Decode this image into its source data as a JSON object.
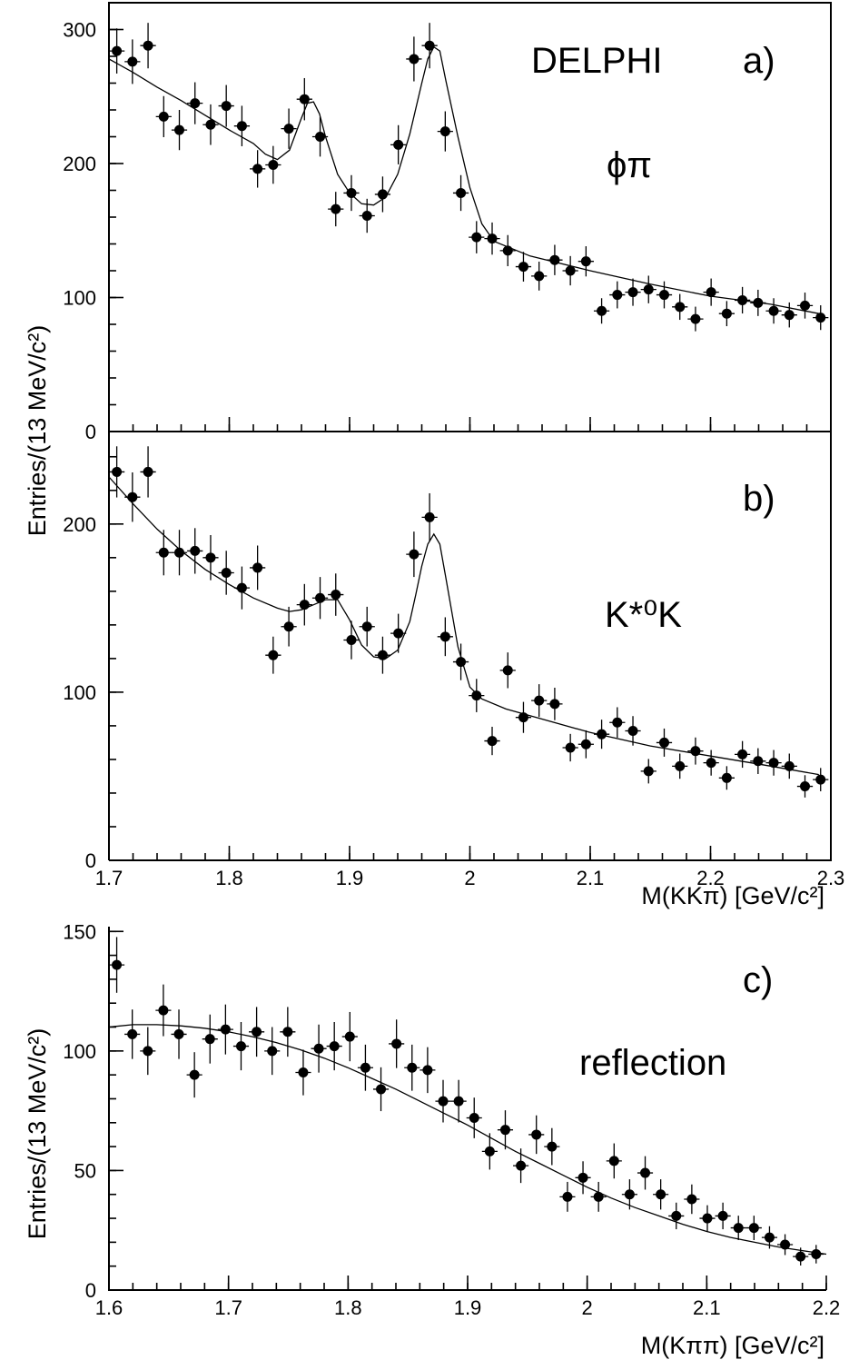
{
  "chart_data": [
    {
      "id": "a",
      "type": "scatter",
      "panel_label": "a)",
      "experiment": "DELPHI",
      "channel": "ϕπ",
      "xlim": [
        1.7,
        2.3
      ],
      "ylim": [
        0,
        320
      ],
      "yticks": [
        0,
        100,
        200,
        300
      ],
      "xticks": [],
      "ylabel": "",
      "x": [
        1.7065,
        1.7195,
        1.7325,
        1.7455,
        1.7585,
        1.7715,
        1.7845,
        1.7975,
        1.8105,
        1.8235,
        1.8365,
        1.8495,
        1.8625,
        1.8755,
        1.8885,
        1.9015,
        1.9145,
        1.9275,
        1.9405,
        1.9535,
        1.9665,
        1.9795,
        1.9925,
        2.0055,
        2.0185,
        2.0315,
        2.0445,
        2.0575,
        2.0705,
        2.0835,
        2.0965,
        2.1095,
        2.1225,
        2.1355,
        2.1485,
        2.1615,
        2.1745,
        2.1875,
        2.2005,
        2.2135,
        2.2265,
        2.2395,
        2.2525,
        2.2655,
        2.2785,
        2.2915
      ],
      "y": [
        284,
        276,
        288,
        235,
        225,
        245,
        229,
        243,
        228,
        196,
        199,
        226,
        248,
        220,
        166,
        178,
        161,
        177,
        214,
        278,
        288,
        224,
        178,
        145,
        144,
        135,
        123,
        116,
        128,
        120,
        127,
        90,
        102,
        104,
        106,
        102,
        93,
        84,
        104,
        88,
        98,
        96,
        90,
        87,
        94,
        85
      ],
      "fit": {
        "x": [
          1.7,
          1.72,
          1.74,
          1.76,
          1.78,
          1.8,
          1.82,
          1.83,
          1.84,
          1.85,
          1.86,
          1.865,
          1.87,
          1.875,
          1.88,
          1.89,
          1.9,
          1.91,
          1.92,
          1.93,
          1.94,
          1.95,
          1.96,
          1.965,
          1.97,
          1.975,
          1.98,
          1.99,
          2.0,
          2.01,
          2.02,
          2.05,
          2.1,
          2.15,
          2.2,
          2.25,
          2.29
        ],
        "y": [
          278,
          268,
          257,
          247,
          236,
          225,
          215,
          207,
          203,
          210,
          234,
          245,
          246,
          237,
          220,
          192,
          178,
          170,
          169,
          175,
          192,
          222,
          260,
          278,
          287,
          284,
          262,
          220,
          182,
          155,
          142,
          131,
          120,
          110,
          101,
          95,
          88
        ]
      }
    },
    {
      "id": "b",
      "type": "scatter",
      "panel_label": "b)",
      "channel": "K*⁰K",
      "xlim": [
        1.7,
        2.3
      ],
      "ylim": [
        0,
        255
      ],
      "yticks": [
        0,
        100,
        200
      ],
      "xticks": [
        1.7,
        1.8,
        1.9,
        2,
        2.1,
        2.2,
        2.3
      ],
      "xtick_labels": [
        "1.7",
        "1.8",
        "1.9",
        "2",
        "2.1",
        "2.2",
        "2.3"
      ],
      "xlabel": "M(KKπ) [GeV/c²]",
      "x": [
        1.7065,
        1.7195,
        1.7325,
        1.7455,
        1.7585,
        1.7715,
        1.7845,
        1.7975,
        1.8105,
        1.8235,
        1.8365,
        1.8495,
        1.8625,
        1.8755,
        1.8885,
        1.9015,
        1.9145,
        1.9275,
        1.9405,
        1.9535,
        1.9665,
        1.9795,
        1.9925,
        2.0055,
        2.0185,
        2.0315,
        2.0445,
        2.0575,
        2.0705,
        2.0835,
        2.0965,
        2.1095,
        2.1225,
        2.1355,
        2.1485,
        2.1615,
        2.1745,
        2.1875,
        2.2005,
        2.2135,
        2.2265,
        2.2395,
        2.2525,
        2.2655,
        2.2785,
        2.2915
      ],
      "y": [
        231,
        216,
        231,
        183,
        183,
        184,
        180,
        171,
        162,
        174,
        122,
        139,
        152,
        156,
        158,
        131,
        139,
        122,
        135,
        182,
        204,
        133,
        118,
        98,
        71,
        113,
        85,
        95,
        93,
        67,
        69,
        75,
        82,
        77,
        53,
        70,
        56,
        65,
        58,
        49,
        63,
        59,
        58,
        56,
        44,
        48
      ],
      "fit": {
        "x": [
          1.7,
          1.72,
          1.74,
          1.76,
          1.78,
          1.8,
          1.82,
          1.84,
          1.85,
          1.86,
          1.87,
          1.88,
          1.89,
          1.9,
          1.91,
          1.92,
          1.93,
          1.94,
          1.95,
          1.955,
          1.96,
          1.965,
          1.97,
          1.975,
          1.98,
          1.99,
          2.0,
          2.01,
          2.03,
          2.06,
          2.1,
          2.15,
          2.2,
          2.25,
          2.29
        ],
        "y": [
          228,
          212,
          197,
          184,
          173,
          164,
          156,
          150,
          148,
          149,
          152,
          155,
          155,
          143,
          128,
          121,
          120,
          125,
          142,
          158,
          175,
          188,
          194,
          188,
          168,
          127,
          103,
          96,
          90,
          84,
          76,
          68,
          62,
          56,
          51
        ]
      }
    },
    {
      "id": "c",
      "type": "scatter",
      "panel_label": "c)",
      "channel": "reflection",
      "xlim": [
        1.6,
        2.2
      ],
      "ylim": [
        0,
        152
      ],
      "yticks": [
        0,
        50,
        100,
        150
      ],
      "xticks": [
        1.6,
        1.7,
        1.8,
        1.9,
        2,
        2.1,
        2.2
      ],
      "xtick_labels": [
        "1.6",
        "1.7",
        "1.8",
        "1.9",
        "2",
        "2.1",
        "2.2"
      ],
      "xlabel": "M(Kππ) [GeV/c²]",
      "ylabel": "Entries/(13 MeV/c²)",
      "x": [
        1.6065,
        1.6195,
        1.6325,
        1.6455,
        1.6585,
        1.6715,
        1.6845,
        1.6975,
        1.7105,
        1.7235,
        1.7365,
        1.7495,
        1.7625,
        1.7755,
        1.7885,
        1.8015,
        1.8145,
        1.8275,
        1.8405,
        1.8535,
        1.8665,
        1.8795,
        1.8925,
        1.9055,
        1.9185,
        1.9315,
        1.9445,
        1.9575,
        1.9705,
        1.9835,
        1.9965,
        2.0095,
        2.0225,
        2.0355,
        2.0485,
        2.0615,
        2.0745,
        2.0875,
        2.1005,
        2.1135,
        2.1265,
        2.1395,
        2.1525,
        2.1655,
        2.1785,
        2.1915
      ],
      "y": [
        136,
        107,
        100,
        117,
        107,
        90,
        105,
        109,
        102,
        108,
        100,
        108,
        91,
        101,
        102,
        106,
        93,
        84,
        103,
        93,
        92,
        79,
        79,
        72,
        58,
        67,
        52,
        65,
        60,
        39,
        47,
        39,
        54,
        40,
        49,
        40,
        31,
        38,
        30,
        31,
        26,
        26,
        22,
        19,
        14,
        15
      ],
      "fit": {
        "x": [
          1.6,
          1.62,
          1.64,
          1.66,
          1.68,
          1.7,
          1.72,
          1.74,
          1.76,
          1.78,
          1.8,
          1.82,
          1.84,
          1.86,
          1.88,
          1.9,
          1.92,
          1.94,
          1.96,
          1.98,
          2.0,
          2.02,
          2.04,
          2.06,
          2.08,
          2.1,
          2.12,
          2.14,
          2.16,
          2.18,
          2.2
        ],
        "y": [
          110,
          111,
          111,
          110.5,
          109.5,
          108,
          106,
          103.5,
          100.5,
          97,
          93,
          88.5,
          84,
          79,
          74,
          69,
          63.5,
          58,
          53,
          48,
          43,
          38.5,
          34.5,
          31,
          27.5,
          24.5,
          22,
          20,
          18,
          16.5,
          15
        ]
      }
    }
  ]
}
